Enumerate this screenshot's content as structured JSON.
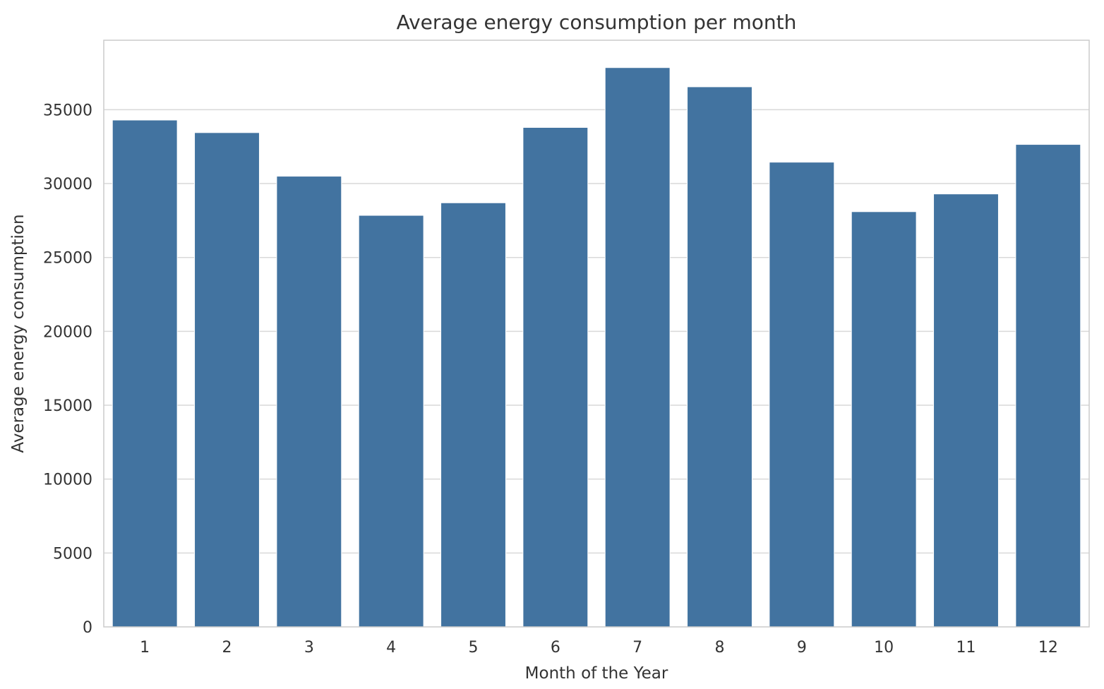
{
  "chart_data": {
    "type": "bar",
    "title": "Average energy consumption per month",
    "xlabel": "Month of the Year",
    "ylabel": "Average energy consumption",
    "categories": [
      "1",
      "2",
      "3",
      "4",
      "5",
      "6",
      "7",
      "8",
      "9",
      "10",
      "11",
      "12"
    ],
    "values": [
      34300,
      33450,
      30500,
      27850,
      28700,
      33800,
      37850,
      36550,
      31450,
      28100,
      29300,
      32650
    ],
    "ylim": [
      0,
      39700
    ],
    "yticks": [
      0,
      5000,
      10000,
      15000,
      20000,
      25000,
      30000,
      35000
    ],
    "ytick_labels": [
      "0",
      "5000",
      "10000",
      "15000",
      "20000",
      "25000",
      "30000",
      "35000"
    ],
    "grid": "horizontal",
    "bar_color": "#4273a0",
    "grid_color": "#d9d9d9",
    "spine_color": "#cccccc",
    "text_color": "#333333",
    "background": "#ffffff"
  }
}
